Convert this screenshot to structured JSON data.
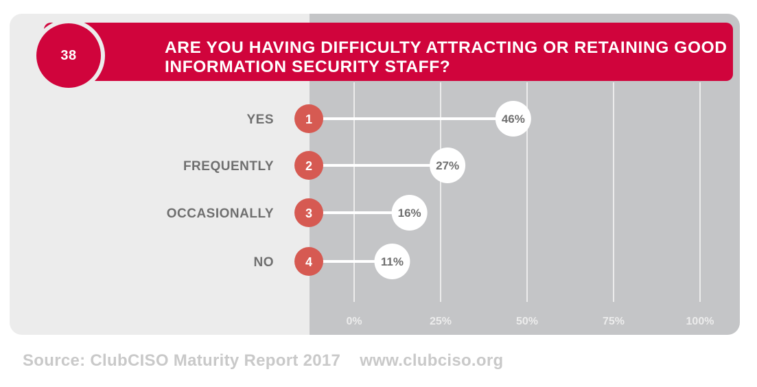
{
  "header": {
    "number": "38",
    "title": "ARE YOU HAVING DIFFICULTY ATTRACTING OR RETAINING GOOD INFORMATION SECURITY STAFF?"
  },
  "chart_data": {
    "type": "bar",
    "categories": [
      "YES",
      "FREQUENTLY",
      "OCCASIONALLY",
      "NO"
    ],
    "ranks": [
      "1",
      "2",
      "3",
      "4"
    ],
    "values": [
      46,
      27,
      16,
      11
    ],
    "value_labels": [
      "46%",
      "27%",
      "16%",
      "11%"
    ],
    "xlim": [
      0,
      100
    ],
    "xticks": [
      0,
      25,
      50,
      75,
      100
    ],
    "xtick_labels": [
      "0%",
      "25%",
      "50%",
      "75%",
      "100%"
    ],
    "grid": true,
    "colors": {
      "accent": "#d0043c",
      "rank_circle": "#d65a52",
      "plot_bg": "#c4c5c7",
      "panel_bg": "#ececec"
    }
  },
  "footer": {
    "source": "Source: ClubCISO Maturity Report 2017",
    "url": "www.clubciso.org"
  }
}
